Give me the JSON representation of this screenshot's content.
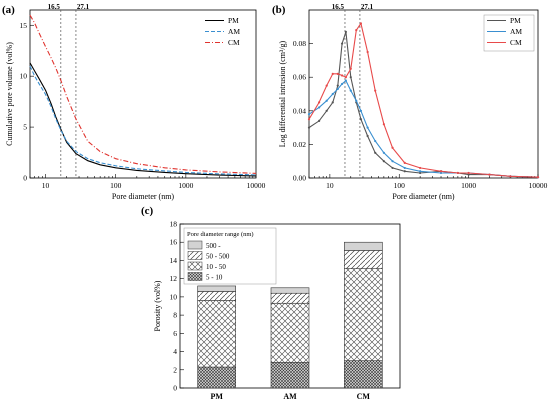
{
  "chart_data": [
    {
      "panel": "(a)",
      "type": "line",
      "xlabel": "Pore diameter (nm)",
      "ylabel": "Cumulative pore volume (vol%)",
      "xscale": "log",
      "xlim": [
        6,
        10000
      ],
      "ylim": [
        0,
        16.5
      ],
      "x_tick_labels": [
        "10",
        "100",
        "1000",
        "10000"
      ],
      "y_tick_labels": [
        "0",
        "5",
        "10",
        "15"
      ],
      "reference_lines": [
        16.5,
        27.1
      ],
      "reference_labels": [
        "16.5",
        "27.1"
      ],
      "legend": "top-right",
      "series": [
        {
          "name": "PM",
          "color": "#000000",
          "dash": "solid",
          "x": [
            6,
            7,
            8,
            10,
            12,
            14,
            16.5,
            20,
            27.1,
            40,
            60,
            100,
            200,
            500,
            1000,
            3000,
            10000
          ],
          "y": [
            11.3,
            10.5,
            9.8,
            8.6,
            7.3,
            6.0,
            4.8,
            3.5,
            2.4,
            1.7,
            1.3,
            1.0,
            0.75,
            0.55,
            0.42,
            0.28,
            0.2
          ]
        },
        {
          "name": "AM",
          "color": "#3a8fd0",
          "dash": "dashed",
          "x": [
            6,
            7,
            8,
            10,
            12,
            14,
            16.5,
            20,
            27.1,
            40,
            60,
            100,
            200,
            500,
            1000,
            3000,
            10000
          ],
          "y": [
            11.0,
            10.0,
            9.3,
            8.2,
            7.0,
            5.8,
            4.7,
            3.6,
            2.6,
            1.9,
            1.5,
            1.2,
            0.9,
            0.7,
            0.55,
            0.4,
            0.3
          ]
        },
        {
          "name": "CM",
          "color": "#e0332e",
          "dash": "dashdot",
          "x": [
            6,
            7,
            8,
            10,
            12,
            14,
            16.5,
            20,
            27.1,
            40,
            60,
            100,
            200,
            500,
            1000,
            3000,
            10000
          ],
          "y": [
            16.0,
            15.2,
            14.3,
            12.9,
            11.8,
            10.8,
            9.6,
            8.0,
            5.8,
            3.6,
            2.6,
            1.9,
            1.4,
            1.0,
            0.8,
            0.6,
            0.45
          ]
        }
      ]
    },
    {
      "panel": "(b)",
      "type": "line",
      "xlabel": "Pore diameter (nm)",
      "ylabel": "Log differential intrusion (cm³/g)",
      "xscale": "log",
      "xlim": [
        5,
        10000
      ],
      "ylim": [
        0,
        0.1
      ],
      "x_tick_labels": [
        "10",
        "100",
        "1000",
        "10000"
      ],
      "y_tick_labels": [
        "0.00",
        "0.02",
        "0.04",
        "0.06",
        "0.08"
      ],
      "reference_lines": [
        16.5,
        27.1
      ],
      "reference_labels": [
        "16.5",
        "27.1"
      ],
      "legend": "top-right",
      "series": [
        {
          "name": "PM",
          "color": "#555555",
          "dash": "solid",
          "x": [
            5,
            7,
            9,
            11,
            13,
            15,
            17,
            20,
            24,
            28,
            35,
            45,
            60,
            80,
            120,
            200,
            400,
            700,
            1000,
            2000,
            4000,
            10000
          ],
          "y": [
            0.03,
            0.034,
            0.04,
            0.045,
            0.055,
            0.08,
            0.087,
            0.06,
            0.045,
            0.035,
            0.025,
            0.015,
            0.01,
            0.006,
            0.004,
            0.003,
            0.004,
            0.003,
            0.002,
            0.002,
            0.001,
            0.0005
          ]
        },
        {
          "name": "AM",
          "color": "#3a8fd0",
          "dash": "solid",
          "x": [
            5,
            7,
            9,
            11,
            13,
            15,
            17,
            20,
            24,
            28,
            35,
            45,
            60,
            80,
            120,
            200,
            400,
            700,
            1000,
            2000,
            4000,
            10000
          ],
          "y": [
            0.038,
            0.042,
            0.046,
            0.05,
            0.053,
            0.056,
            0.058,
            0.052,
            0.046,
            0.04,
            0.03,
            0.022,
            0.015,
            0.01,
            0.006,
            0.004,
            0.003,
            0.003,
            0.003,
            0.002,
            0.001,
            0.0005
          ]
        },
        {
          "name": "CM",
          "color": "#e84a4a",
          "dash": "solid",
          "x": [
            5,
            7,
            9,
            11,
            13,
            15,
            17,
            20,
            24,
            28,
            35,
            45,
            60,
            80,
            120,
            200,
            400,
            700,
            1000,
            2000,
            4000,
            10000
          ],
          "y": [
            0.035,
            0.045,
            0.055,
            0.062,
            0.062,
            0.061,
            0.06,
            0.065,
            0.088,
            0.092,
            0.075,
            0.052,
            0.032,
            0.018,
            0.009,
            0.006,
            0.004,
            0.003,
            0.003,
            0.002,
            0.001,
            0.0005
          ]
        }
      ]
    },
    {
      "panel": "(c)",
      "type": "bar",
      "stacked": true,
      "ylabel": "Porosity (vol%)",
      "ylim": [
        0,
        18
      ],
      "y_tick_labels": [
        "0",
        "2",
        "4",
        "6",
        "8",
        "10",
        "12",
        "14",
        "16",
        "18"
      ],
      "categories": [
        "PM",
        "AM",
        "CM"
      ],
      "legend_title": "Pore diameter range (nm)",
      "legend": "top-left",
      "series": [
        {
          "name": "5 - 10",
          "values": [
            2.3,
            2.8,
            3.0
          ]
        },
        {
          "name": "10 - 50",
          "values": [
            7.3,
            6.5,
            10.1
          ]
        },
        {
          "name": "50 - 500",
          "values": [
            1.0,
            1.1,
            2.0
          ]
        },
        {
          "name": "500 -",
          "values": [
            0.6,
            0.6,
            0.9
          ]
        }
      ]
    }
  ]
}
